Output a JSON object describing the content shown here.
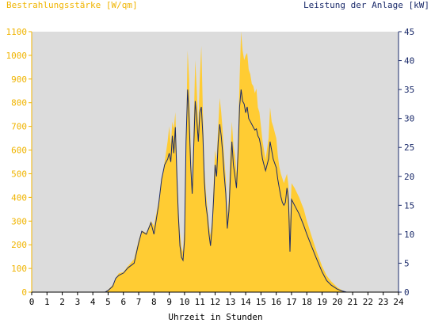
{
  "chart_data": {
    "type": "area",
    "ylabel_left": "Bestrahlungsstärke [W/qm]",
    "ylabel_right": "Leistung der Anlage [kW]",
    "xlabel": "Uhrzeit in Stunden",
    "xlim": [
      0,
      24
    ],
    "ylim_left": [
      0,
      1100
    ],
    "ylim_right": [
      0,
      45
    ],
    "x_ticks": [
      "0",
      "1",
      "2",
      "3",
      "4",
      "5",
      "6",
      "7",
      "8",
      "9",
      "10",
      "11",
      "12",
      "13",
      "14",
      "15",
      "16",
      "17",
      "18",
      "19",
      "20",
      "21",
      "22",
      "23",
      "24"
    ],
    "y_left_ticks": [
      "0",
      "100",
      "200",
      "300",
      "400",
      "500",
      "600",
      "700",
      "800",
      "900",
      "1000",
      "1100"
    ],
    "y_right_ticks": [
      "0",
      "5",
      "10",
      "15",
      "20",
      "25",
      "30",
      "35",
      "40",
      "45"
    ],
    "grid": false,
    "colors": {
      "irradiance": "#ffcc33",
      "power": "#1a2a6a",
      "plot_bg": "#dcdcdc",
      "left_axis": "#f0b400",
      "right_axis": "#1a2a6a"
    },
    "series": [
      {
        "name": "Bestrahlungsstärke",
        "axis": "left",
        "kind": "area",
        "points": [
          [
            0,
            0
          ],
          [
            4.8,
            0
          ],
          [
            5.0,
            10
          ],
          [
            5.3,
            30
          ],
          [
            5.5,
            60
          ],
          [
            5.7,
            80
          ],
          [
            6.0,
            85
          ],
          [
            6.3,
            110
          ],
          [
            6.7,
            140
          ],
          [
            7.0,
            220
          ],
          [
            7.2,
            260
          ],
          [
            7.5,
            250
          ],
          [
            7.8,
            300
          ],
          [
            8.0,
            280
          ],
          [
            8.3,
            380
          ],
          [
            8.5,
            470
          ],
          [
            8.7,
            550
          ],
          [
            8.9,
            640
          ],
          [
            9.0,
            700
          ],
          [
            9.1,
            620
          ],
          [
            9.2,
            720
          ],
          [
            9.3,
            690
          ],
          [
            9.4,
            760
          ],
          [
            9.5,
            560
          ],
          [
            9.6,
            350
          ],
          [
            9.7,
            250
          ],
          [
            9.8,
            190
          ],
          [
            9.9,
            170
          ],
          [
            10.0,
            280
          ],
          [
            10.1,
            650
          ],
          [
            10.2,
            1020
          ],
          [
            10.3,
            900
          ],
          [
            10.4,
            620
          ],
          [
            10.5,
            450
          ],
          [
            10.6,
            700
          ],
          [
            10.7,
            980
          ],
          [
            10.8,
            860
          ],
          [
            10.9,
            700
          ],
          [
            11.0,
            900
          ],
          [
            11.1,
            1040
          ],
          [
            11.2,
            760
          ],
          [
            11.3,
            520
          ],
          [
            11.4,
            420
          ],
          [
            11.5,
            350
          ],
          [
            11.6,
            280
          ],
          [
            11.7,
            240
          ],
          [
            11.8,
            300
          ],
          [
            11.9,
            450
          ],
          [
            12.0,
            600
          ],
          [
            12.1,
            560
          ],
          [
            12.2,
            700
          ],
          [
            12.3,
            820
          ],
          [
            12.4,
            760
          ],
          [
            12.5,
            680
          ],
          [
            12.6,
            560
          ],
          [
            12.7,
            480
          ],
          [
            12.8,
            320
          ],
          [
            12.9,
            400
          ],
          [
            13.0,
            600
          ],
          [
            13.1,
            720
          ],
          [
            13.2,
            620
          ],
          [
            13.3,
            580
          ],
          [
            13.4,
            500
          ],
          [
            13.5,
            640
          ],
          [
            13.6,
            900
          ],
          [
            13.7,
            1100
          ],
          [
            13.8,
            1020
          ],
          [
            13.9,
            980
          ],
          [
            14.0,
            1000
          ],
          [
            14.1,
            1010
          ],
          [
            14.2,
            940
          ],
          [
            14.3,
            920
          ],
          [
            14.4,
            880
          ],
          [
            14.5,
            870
          ],
          [
            14.6,
            840
          ],
          [
            14.7,
            860
          ],
          [
            14.8,
            780
          ],
          [
            14.9,
            760
          ],
          [
            15.0,
            700
          ],
          [
            15.1,
            640
          ],
          [
            15.2,
            600
          ],
          [
            15.3,
            560
          ],
          [
            15.5,
            650
          ],
          [
            15.6,
            780
          ],
          [
            15.7,
            720
          ],
          [
            15.8,
            700
          ],
          [
            16.0,
            650
          ],
          [
            16.1,
            580
          ],
          [
            16.2,
            530
          ],
          [
            16.3,
            500
          ],
          [
            16.4,
            480
          ],
          [
            16.5,
            460
          ],
          [
            16.6,
            480
          ],
          [
            16.7,
            500
          ],
          [
            16.8,
            450
          ],
          [
            16.9,
            300
          ],
          [
            17.0,
            460
          ],
          [
            17.2,
            440
          ],
          [
            17.5,
            400
          ],
          [
            17.8,
            350
          ],
          [
            18.0,
            300
          ],
          [
            18.3,
            240
          ],
          [
            18.6,
            180
          ],
          [
            19.0,
            110
          ],
          [
            19.3,
            70
          ],
          [
            19.6,
            45
          ],
          [
            20.0,
            20
          ],
          [
            20.3,
            8
          ],
          [
            20.6,
            0
          ],
          [
            24,
            0
          ]
        ]
      },
      {
        "name": "Leistung der Anlage",
        "axis": "right",
        "kind": "line",
        "points": [
          [
            0,
            0
          ],
          [
            4.8,
            0
          ],
          [
            5.0,
            0.3
          ],
          [
            5.3,
            1.0
          ],
          [
            5.5,
            2.4
          ],
          [
            5.7,
            2.9
          ],
          [
            6.0,
            3.3
          ],
          [
            6.3,
            4.2
          ],
          [
            6.7,
            5.0
          ],
          [
            7.0,
            8.5
          ],
          [
            7.2,
            10.5
          ],
          [
            7.5,
            10.0
          ],
          [
            7.8,
            12.0
          ],
          [
            8.0,
            10.0
          ],
          [
            8.3,
            15.0
          ],
          [
            8.5,
            19.5
          ],
          [
            8.7,
            22.0
          ],
          [
            8.9,
            23.0
          ],
          [
            9.0,
            24.0
          ],
          [
            9.1,
            22.5
          ],
          [
            9.2,
            27.0
          ],
          [
            9.3,
            24.0
          ],
          [
            9.4,
            28.5
          ],
          [
            9.5,
            20.0
          ],
          [
            9.6,
            13.0
          ],
          [
            9.7,
            8.0
          ],
          [
            9.8,
            6.0
          ],
          [
            9.9,
            5.5
          ],
          [
            10.0,
            9.0
          ],
          [
            10.1,
            26.0
          ],
          [
            10.2,
            35.0
          ],
          [
            10.3,
            30.0
          ],
          [
            10.4,
            22.0
          ],
          [
            10.5,
            17.0
          ],
          [
            10.6,
            25.0
          ],
          [
            10.7,
            33.0
          ],
          [
            10.8,
            30.0
          ],
          [
            10.9,
            26.0
          ],
          [
            11.0,
            31.0
          ],
          [
            11.1,
            32.0
          ],
          [
            11.2,
            27.0
          ],
          [
            11.3,
            19.0
          ],
          [
            11.4,
            15.0
          ],
          [
            11.5,
            13.0
          ],
          [
            11.6,
            10.0
          ],
          [
            11.7,
            8.0
          ],
          [
            11.8,
            11.0
          ],
          [
            11.9,
            16.0
          ],
          [
            12.0,
            22.0
          ],
          [
            12.1,
            20.0
          ],
          [
            12.2,
            26.0
          ],
          [
            12.3,
            29.0
          ],
          [
            12.4,
            27.0
          ],
          [
            12.5,
            24.0
          ],
          [
            12.6,
            20.0
          ],
          [
            12.7,
            17.0
          ],
          [
            12.8,
            11.0
          ],
          [
            12.9,
            14.0
          ],
          [
            13.0,
            20.0
          ],
          [
            13.1,
            26.0
          ],
          [
            13.2,
            22.0
          ],
          [
            13.3,
            20.0
          ],
          [
            13.4,
            18.0
          ],
          [
            13.5,
            24.0
          ],
          [
            13.6,
            32.0
          ],
          [
            13.7,
            35.0
          ],
          [
            13.8,
            33.0
          ],
          [
            13.9,
            32.5
          ],
          [
            14.0,
            31.0
          ],
          [
            14.1,
            32.0
          ],
          [
            14.2,
            30.0
          ],
          [
            14.3,
            29.5
          ],
          [
            14.4,
            29.0
          ],
          [
            14.5,
            28.5
          ],
          [
            14.6,
            28.0
          ],
          [
            14.7,
            28.2
          ],
          [
            14.8,
            27.0
          ],
          [
            14.9,
            26.5
          ],
          [
            15.0,
            25.0
          ],
          [
            15.1,
            23.0
          ],
          [
            15.2,
            22.0
          ],
          [
            15.3,
            21.0
          ],
          [
            15.5,
            23.0
          ],
          [
            15.6,
            26.0
          ],
          [
            15.7,
            24.5
          ],
          [
            15.8,
            23.0
          ],
          [
            16.0,
            21.5
          ],
          [
            16.1,
            19.5
          ],
          [
            16.2,
            18.0
          ],
          [
            16.3,
            16.5
          ],
          [
            16.4,
            15.5
          ],
          [
            16.5,
            15.0
          ],
          [
            16.6,
            15.5
          ],
          [
            16.7,
            18.0
          ],
          [
            16.8,
            16.0
          ],
          [
            16.9,
            7.0
          ],
          [
            17.0,
            16.0
          ],
          [
            17.2,
            15.0
          ],
          [
            17.5,
            13.5
          ],
          [
            17.8,
            11.5
          ],
          [
            18.0,
            10.0
          ],
          [
            18.3,
            8.0
          ],
          [
            18.6,
            6.0
          ],
          [
            19.0,
            3.5
          ],
          [
            19.3,
            2.0
          ],
          [
            19.6,
            1.2
          ],
          [
            20.0,
            0.5
          ],
          [
            20.3,
            0.2
          ],
          [
            20.6,
            0
          ],
          [
            24,
            0
          ]
        ]
      }
    ]
  }
}
